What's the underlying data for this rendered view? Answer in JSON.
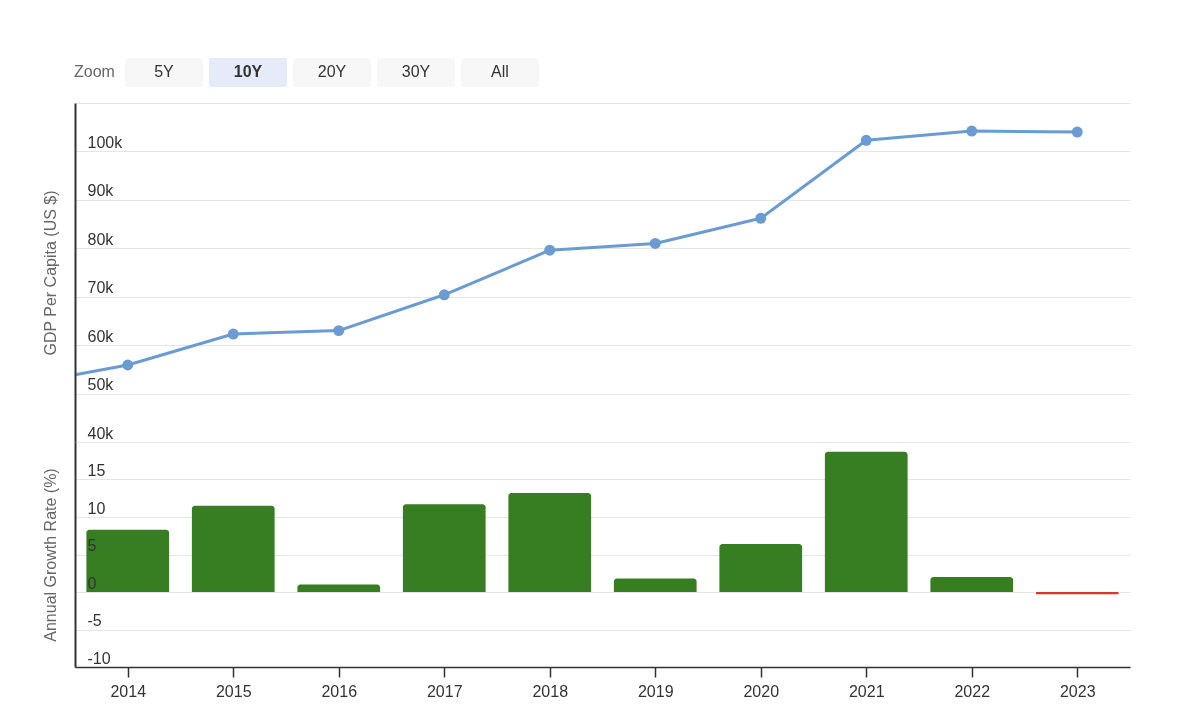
{
  "chart_data": [
    {
      "type": "line",
      "x": [
        2013.5,
        2014,
        2015,
        2016,
        2017,
        2018,
        2019,
        2020,
        2021,
        2022,
        2023
      ],
      "series": [
        {
          "color": "#6a9bd3",
          "values": [
            53900,
            55900,
            62300,
            63000,
            70400,
            79600,
            81000,
            86200,
            102300,
            104200,
            104000
          ]
        }
      ],
      "ylabel": "GDP Per Capita (US $)",
      "xlim": [
        2013.5,
        2023.5
      ],
      "ylim": [
        40000,
        110000
      ],
      "yticks": [
        {
          "value": 40000,
          "label": "40k"
        },
        {
          "value": 50000,
          "label": "50k"
        },
        {
          "value": 60000,
          "label": "60k"
        },
        {
          "value": 70000,
          "label": "70k"
        },
        {
          "value": 80000,
          "label": "80k"
        },
        {
          "value": 90000,
          "label": "90k"
        },
        {
          "value": 100000,
          "label": "100k"
        },
        {
          "value": 110000,
          "label": null
        }
      ],
      "grid": "y",
      "marker": "circle",
      "line_style": "solid",
      "tick_labels": "y",
      "annotations": [
        "Zoom",
        "5Y",
        "10Y",
        "20Y",
        "30Y",
        "All"
      ]
    },
    {
      "type": "bar",
      "x": [
        2014,
        2015,
        2016,
        2017,
        2018,
        2019,
        2020,
        2021,
        2022,
        2023
      ],
      "values": [
        8.3,
        11.5,
        1.0,
        11.7,
        13.2,
        1.8,
        6.4,
        18.7,
        2.0,
        -0.3
      ],
      "colors": [
        "#377e22",
        "#377e22",
        "#377e22",
        "#377e22",
        "#377e22",
        "#377e22",
        "#377e22",
        "#377e22",
        "#377e22",
        "#d9352f"
      ],
      "ylabel": "Annual Growth Rate (%)",
      "xlim": [
        2013.5,
        2023.5
      ],
      "xticks": [
        2014,
        2015,
        2016,
        2017,
        2018,
        2019,
        2020,
        2021,
        2022,
        2023
      ],
      "ylim": [
        -10,
        20
      ],
      "yticks": [
        -10,
        -5,
        0,
        5,
        10,
        15
      ],
      "grid": "y"
    }
  ]
}
